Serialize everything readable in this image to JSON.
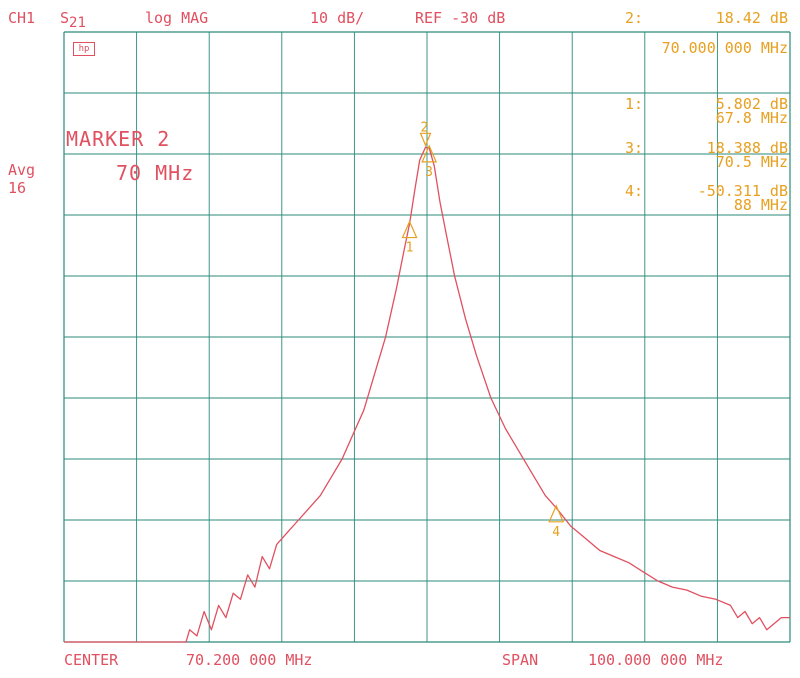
{
  "header": {
    "channel": "CH1",
    "param_main": "S",
    "param_sub": "21",
    "format": "log MAG",
    "scale": "10 dB/",
    "ref": "REF -30 dB",
    "active_marker_num": "2:",
    "active_marker_value": "18.42  dB",
    "active_marker_freq": "70.000 000 MHz"
  },
  "left_panel": {
    "avg_label": "Avg",
    "avg_value": "16",
    "marker_title": "MARKER 2",
    "marker_freq": "70 MHz",
    "hp_logo": "hp"
  },
  "marker_list": [
    {
      "num": "1:",
      "value": "5.802  dB",
      "freq": "67.8 MHz"
    },
    {
      "num": "3:",
      "value": "18.388 dB",
      "freq": "70.5 MHz"
    },
    {
      "num": "4:",
      "value": "-50.311 dB",
      "freq": "88 MHz"
    }
  ],
  "footer": {
    "center_label": "CENTER",
    "center_value": "70.200 000 MHz",
    "span_label": "SPAN",
    "span_value": "100.000 000 MHz"
  },
  "colors": {
    "trace": "#e05060",
    "grid": "#2a8a7a",
    "annotation": "#e8a020",
    "text": "#e05060"
  },
  "chart_data": {
    "type": "line",
    "ylim": [
      -130,
      -30
    ],
    "xlim": [
      20.2,
      120.2
    ],
    "grid": true,
    "grid_divisions": {
      "x": 10,
      "y": 10
    },
    "series": [
      {
        "x": [
          20.2,
          37.0,
          37.5,
          38.5,
          39.5,
          40.5,
          41.5,
          42.5,
          43.5,
          44.5,
          45.5,
          46.5,
          47.5,
          48.5,
          49.5,
          51,
          52.5,
          54,
          55.5,
          57,
          58.5,
          60,
          61.5,
          63,
          64.5,
          66,
          67,
          67.8,
          68.5,
          69.2,
          70.0,
          70.5,
          71.2,
          72,
          73,
          74,
          75.5,
          77,
          79,
          81,
          83,
          85,
          86.5,
          88,
          90,
          92,
          94,
          96,
          98,
          100,
          102,
          104,
          106,
          108,
          110,
          112,
          113,
          114,
          115,
          116,
          117,
          118,
          119,
          120.2
        ],
        "y": [
          -130,
          -130,
          -128,
          -129,
          -125,
          -128,
          -124,
          -126,
          -122,
          -123,
          -119,
          -121,
          -116,
          -118,
          -114,
          -112,
          -110,
          -108,
          -106,
          -103,
          -100,
          -96,
          -92,
          -86,
          -80,
          -72,
          -66,
          -61.4,
          -56,
          -51,
          -48.9,
          -49,
          -52,
          -58,
          -64,
          -70,
          -77,
          -83,
          -90,
          -95,
          -99,
          -103,
          -106,
          -108,
          -111,
          -113,
          -115,
          -116,
          -117,
          -118.5,
          -120,
          -121,
          -121.5,
          -122.5,
          -123,
          -124,
          -126,
          -125,
          -127,
          -126,
          -128,
          -127,
          -126,
          -126
        ]
      }
    ],
    "markers": [
      {
        "id": "1",
        "x": 67.8,
        "y": -61.4
      },
      {
        "id": "2",
        "x": 70.0,
        "y": -48.9
      },
      {
        "id": "3",
        "x": 70.5,
        "y": -49.0
      },
      {
        "id": "4",
        "x": 88.0,
        "y": -108.0
      }
    ]
  }
}
